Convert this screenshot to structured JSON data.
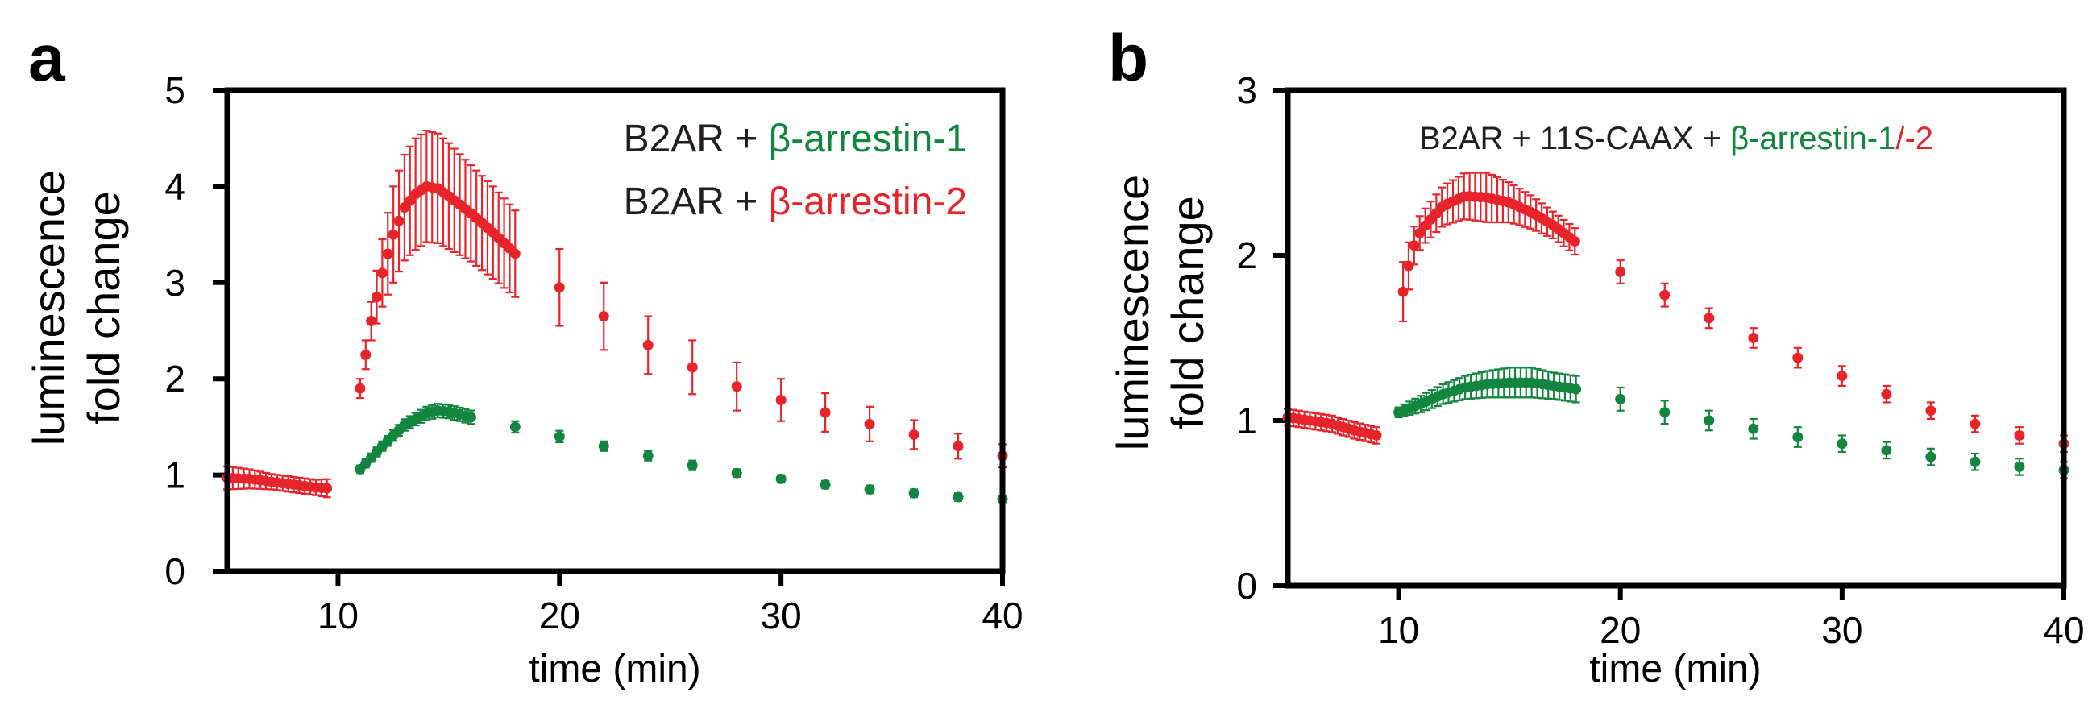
{
  "colors": {
    "red": "#e8242b",
    "green": "#12853f",
    "axis": "#000000"
  },
  "panels": {
    "a": {
      "letter": "a",
      "ylabel_line1": "luminescence",
      "ylabel_line2": "fold change",
      "xlabel": "time (min)",
      "legend": {
        "line1_prefix": "B2AR + ",
        "line1_colored": "β-arrestin-1",
        "line2_prefix": "B2AR + ",
        "line2_colored": "β-arrestin-2"
      }
    },
    "b": {
      "letter": "b",
      "ylabel_line1": "luminescence",
      "ylabel_line2": "fold change",
      "xlabel": "time (min)",
      "legend": {
        "prefix": "B2AR + 11S-CAAX + ",
        "green_part": "β-arrestin-1",
        "red_part": "/-2"
      }
    }
  },
  "chart_data": [
    {
      "type": "scatter",
      "panel": "a",
      "xlabel": "time (min)",
      "ylabel": "luminescence fold change",
      "xlim": [
        5,
        40
      ],
      "ylim": [
        0,
        5
      ],
      "xticks": [
        10,
        20,
        30,
        40
      ],
      "yticks": [
        0,
        1,
        2,
        3,
        4,
        5
      ],
      "series": [
        {
          "name": "B2AR + β-arrestin-2",
          "color": "red",
          "points": [
            [
              5,
              0.97
            ],
            [
              6,
              0.96
            ],
            [
              7,
              0.93
            ],
            [
              8,
              0.9
            ],
            [
              9,
              0.87
            ],
            [
              9.7,
              0.86
            ],
            [
              11,
              1.9
            ],
            [
              11.5,
              2.6
            ],
            [
              12,
              3.1
            ],
            [
              12.5,
              3.5
            ],
            [
              13,
              3.78
            ],
            [
              13.5,
              3.92
            ],
            [
              14,
              4.0
            ],
            [
              14.5,
              3.98
            ],
            [
              15,
              3.9
            ],
            [
              16,
              3.72
            ],
            [
              17,
              3.52
            ],
            [
              18,
              3.3
            ],
            [
              20,
              2.95
            ],
            [
              22,
              2.65
            ],
            [
              24,
              2.35
            ],
            [
              26,
              2.12
            ],
            [
              28,
              1.92
            ],
            [
              30,
              1.78
            ],
            [
              32,
              1.65
            ],
            [
              34,
              1.53
            ],
            [
              36,
              1.42
            ],
            [
              38,
              1.3
            ],
            [
              40,
              1.2
            ]
          ],
          "errors": [
            [
              5,
              0.12
            ],
            [
              6,
              0.1
            ],
            [
              7,
              0.08
            ],
            [
              8,
              0.08
            ],
            [
              9,
              0.08
            ],
            [
              9.7,
              0.1
            ],
            [
              11,
              0.1
            ],
            [
              11.5,
              0.2
            ],
            [
              12,
              0.35
            ],
            [
              12.5,
              0.5
            ],
            [
              13,
              0.55
            ],
            [
              13.5,
              0.58
            ],
            [
              14,
              0.58
            ],
            [
              14.5,
              0.57
            ],
            [
              15,
              0.55
            ],
            [
              16,
              0.5
            ],
            [
              17,
              0.48
            ],
            [
              18,
              0.45
            ],
            [
              20,
              0.4
            ],
            [
              22,
              0.35
            ],
            [
              24,
              0.3
            ],
            [
              26,
              0.28
            ],
            [
              28,
              0.25
            ],
            [
              30,
              0.22
            ],
            [
              32,
              0.2
            ],
            [
              34,
              0.18
            ],
            [
              36,
              0.15
            ],
            [
              38,
              0.13
            ],
            [
              40,
              0.12
            ]
          ]
        },
        {
          "name": "B2AR + β-arrestin-1",
          "color": "green",
          "points": [
            [
              11,
              1.06
            ],
            [
              12,
              1.3
            ],
            [
              13,
              1.52
            ],
            [
              14,
              1.64
            ],
            [
              14.5,
              1.67
            ],
            [
              15,
              1.66
            ],
            [
              16,
              1.6
            ],
            [
              18,
              1.5
            ],
            [
              20,
              1.4
            ],
            [
              22,
              1.3
            ],
            [
              24,
              1.2
            ],
            [
              26,
              1.1
            ],
            [
              28,
              1.02
            ],
            [
              30,
              0.96
            ],
            [
              32,
              0.9
            ],
            [
              34,
              0.85
            ],
            [
              36,
              0.81
            ],
            [
              38,
              0.77
            ],
            [
              40,
              0.75
            ]
          ],
          "errors": [
            [
              11,
              0.04
            ],
            [
              12,
              0.05
            ],
            [
              13,
              0.06
            ],
            [
              14,
              0.07
            ],
            [
              14.5,
              0.07
            ],
            [
              15,
              0.07
            ],
            [
              16,
              0.07
            ],
            [
              18,
              0.06
            ],
            [
              20,
              0.06
            ],
            [
              22,
              0.05
            ],
            [
              24,
              0.05
            ],
            [
              26,
              0.05
            ],
            [
              28,
              0.04
            ],
            [
              30,
              0.04
            ],
            [
              32,
              0.04
            ],
            [
              34,
              0.04
            ],
            [
              36,
              0.04
            ],
            [
              38,
              0.04
            ],
            [
              40,
              0.03
            ]
          ]
        }
      ]
    },
    {
      "type": "scatter",
      "panel": "b",
      "xlabel": "time (min)",
      "ylabel": "luminescence fold change",
      "xlim": [
        5,
        40
      ],
      "ylim": [
        0,
        3
      ],
      "xticks": [
        10,
        20,
        30,
        40
      ],
      "yticks": [
        0,
        1,
        2,
        3
      ],
      "series": [
        {
          "name": "B2AR + 11S-CAAX + β-arrestin-2",
          "color": "red",
          "points": [
            [
              5,
              1.02
            ],
            [
              6,
              1.0
            ],
            [
              7,
              0.98
            ],
            [
              8,
              0.94
            ],
            [
              9,
              0.91
            ],
            [
              10.2,
              1.78
            ],
            [
              10.6,
              2.03
            ],
            [
              11,
              2.15
            ],
            [
              12,
              2.3
            ],
            [
              13,
              2.36
            ],
            [
              14,
              2.35
            ],
            [
              15,
              2.32
            ],
            [
              16,
              2.26
            ],
            [
              17,
              2.18
            ],
            [
              18,
              2.08
            ],
            [
              20,
              1.9
            ],
            [
              22,
              1.76
            ],
            [
              24,
              1.62
            ],
            [
              26,
              1.5
            ],
            [
              28,
              1.38
            ],
            [
              30,
              1.27
            ],
            [
              32,
              1.16
            ],
            [
              34,
              1.06
            ],
            [
              36,
              0.98
            ],
            [
              38,
              0.91
            ],
            [
              40,
              0.86
            ]
          ],
          "errors": [
            [
              5,
              0.05
            ],
            [
              6,
              0.05
            ],
            [
              7,
              0.05
            ],
            [
              8,
              0.05
            ],
            [
              9,
              0.05
            ],
            [
              10.2,
              0.18
            ],
            [
              10.6,
              0.12
            ],
            [
              11,
              0.1
            ],
            [
              12,
              0.12
            ],
            [
              13,
              0.14
            ],
            [
              14,
              0.15
            ],
            [
              15,
              0.12
            ],
            [
              16,
              0.1
            ],
            [
              17,
              0.08
            ],
            [
              18,
              0.08
            ],
            [
              20,
              0.07
            ],
            [
              22,
              0.07
            ],
            [
              24,
              0.06
            ],
            [
              26,
              0.06
            ],
            [
              28,
              0.06
            ],
            [
              30,
              0.06
            ],
            [
              32,
              0.05
            ],
            [
              34,
              0.05
            ],
            [
              36,
              0.05
            ],
            [
              38,
              0.05
            ],
            [
              40,
              0.05
            ]
          ]
        },
        {
          "name": "B2AR + 11S-CAAX + β-arrestin-1",
          "color": "green",
          "points": [
            [
              10,
              1.05
            ],
            [
              11,
              1.1
            ],
            [
              12,
              1.16
            ],
            [
              13,
              1.2
            ],
            [
              14,
              1.22
            ],
            [
              15,
              1.23
            ],
            [
              16,
              1.23
            ],
            [
              17,
              1.21
            ],
            [
              18,
              1.19
            ],
            [
              20,
              1.13
            ],
            [
              22,
              1.05
            ],
            [
              24,
              1.0
            ],
            [
              26,
              0.95
            ],
            [
              28,
              0.9
            ],
            [
              30,
              0.86
            ],
            [
              32,
              0.82
            ],
            [
              34,
              0.78
            ],
            [
              36,
              0.75
            ],
            [
              38,
              0.72
            ],
            [
              40,
              0.7
            ]
          ],
          "errors": [
            [
              10,
              0.03
            ],
            [
              11,
              0.05
            ],
            [
              12,
              0.06
            ],
            [
              13,
              0.07
            ],
            [
              14,
              0.08
            ],
            [
              15,
              0.09
            ],
            [
              16,
              0.09
            ],
            [
              17,
              0.08
            ],
            [
              18,
              0.08
            ],
            [
              20,
              0.07
            ],
            [
              22,
              0.07
            ],
            [
              24,
              0.06
            ],
            [
              26,
              0.06
            ],
            [
              28,
              0.06
            ],
            [
              30,
              0.05
            ],
            [
              32,
              0.05
            ],
            [
              34,
              0.05
            ],
            [
              36,
              0.05
            ],
            [
              38,
              0.05
            ],
            [
              40,
              0.05
            ]
          ]
        }
      ]
    }
  ]
}
